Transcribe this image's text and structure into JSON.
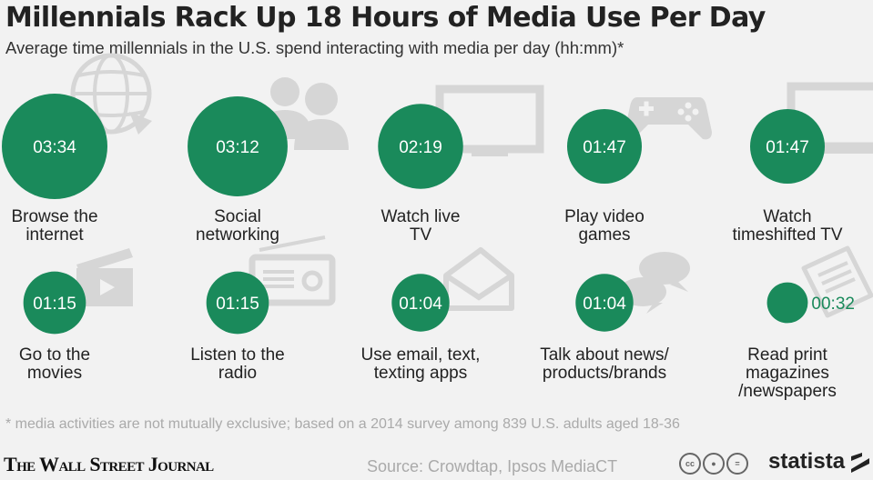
{
  "header": {
    "title": "Millennials Rack Up 18 Hours of Media Use Per Day",
    "subtitle": "Average time millennials in the U.S. spend interacting with media per day (hh:mm)*"
  },
  "chart_data": {
    "type": "bubble",
    "unit": "hh:mm",
    "categories": [
      [
        "Browse the",
        "internet"
      ],
      [
        "Social",
        "networking"
      ],
      [
        "Watch live",
        "TV"
      ],
      [
        "Play video",
        "games"
      ],
      [
        "Watch",
        "timeshifted TV"
      ],
      [
        "Go to the",
        "movies"
      ],
      [
        "Listen to the",
        "radio"
      ],
      [
        "Use email, text,",
        "texting apps"
      ],
      [
        "Talk about news/",
        "products/brands"
      ],
      [
        "Read print",
        "magazines",
        "/newspapers"
      ]
    ],
    "labels": [
      "03:34",
      "03:12",
      "02:19",
      "01:47",
      "01:47",
      "01:15",
      "01:15",
      "01:04",
      "01:04",
      "00:32"
    ],
    "values_minutes": [
      214,
      192,
      139,
      107,
      107,
      75,
      75,
      64,
      64,
      32
    ],
    "icons": [
      "globe-icon",
      "people-icon",
      "tv-icon",
      "gamepad-icon",
      "monitor-icon",
      "clapperboard-icon",
      "radio-icon",
      "envelope-icon",
      "speech-bubbles-icon",
      "newspaper-icon"
    ],
    "bubble_color": "#1a8a5b",
    "icon_color": "#d6d6d6"
  },
  "footer": {
    "footnote": "* media activities are not mutually exclusive; based on a 2014 survey among 839 U.S. adults aged 18-36",
    "publisher": "The Wall Street Journal",
    "source": "Source: Crowdtap, Ipsos MediaCT",
    "license_icons": [
      "cc-icon",
      "attribution-icon",
      "noderivs-icon"
    ],
    "brand": "statista"
  }
}
